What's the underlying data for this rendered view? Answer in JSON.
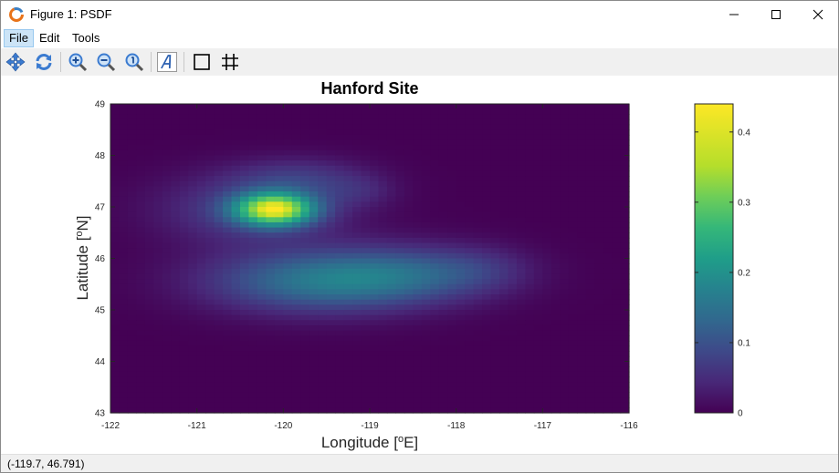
{
  "window": {
    "title": "Figure 1: PSDF",
    "controls": [
      "minimize",
      "maximize",
      "close"
    ]
  },
  "menubar": {
    "items": [
      {
        "label": "File",
        "active": true
      },
      {
        "label": "Edit",
        "active": false
      },
      {
        "label": "Tools",
        "active": false
      }
    ]
  },
  "toolbar": {
    "buttons": [
      "pan-icon",
      "rotate-icon",
      "zoom-in-icon",
      "zoom-out-icon",
      "zoom-reset-icon",
      "insert-text-icon",
      "axes-box-icon",
      "grid-icon"
    ]
  },
  "statusbar": {
    "coords": "(-119.7, 46.791)"
  },
  "chart_data": {
    "type": "heatmap",
    "title": "Hanford Site",
    "xlabel": "Longitude [oE]",
    "ylabel": "Latitude [oN]",
    "xlim": [
      -122,
      -116
    ],
    "ylim": [
      43,
      49
    ],
    "x_ticks": [
      "-122",
      "-121",
      "-120",
      "-119",
      "-118",
      "-117",
      "-116"
    ],
    "y_ticks": [
      "43",
      "44",
      "45",
      "46",
      "47",
      "48",
      "49"
    ],
    "colorbar": {
      "colormap": "viridis",
      "range": [
        0,
        0.44
      ],
      "ticks": [
        "0",
        "0.1",
        "0.2",
        "0.3",
        "0.4"
      ]
    },
    "peaks": [
      {
        "lon": -120.1,
        "lat": 46.95,
        "value": 0.44
      },
      {
        "lon": -119.6,
        "lat": 45.6,
        "value": 0.2
      },
      {
        "lon": -118.6,
        "lat": 45.65,
        "value": 0.15
      }
    ],
    "grid": false
  }
}
